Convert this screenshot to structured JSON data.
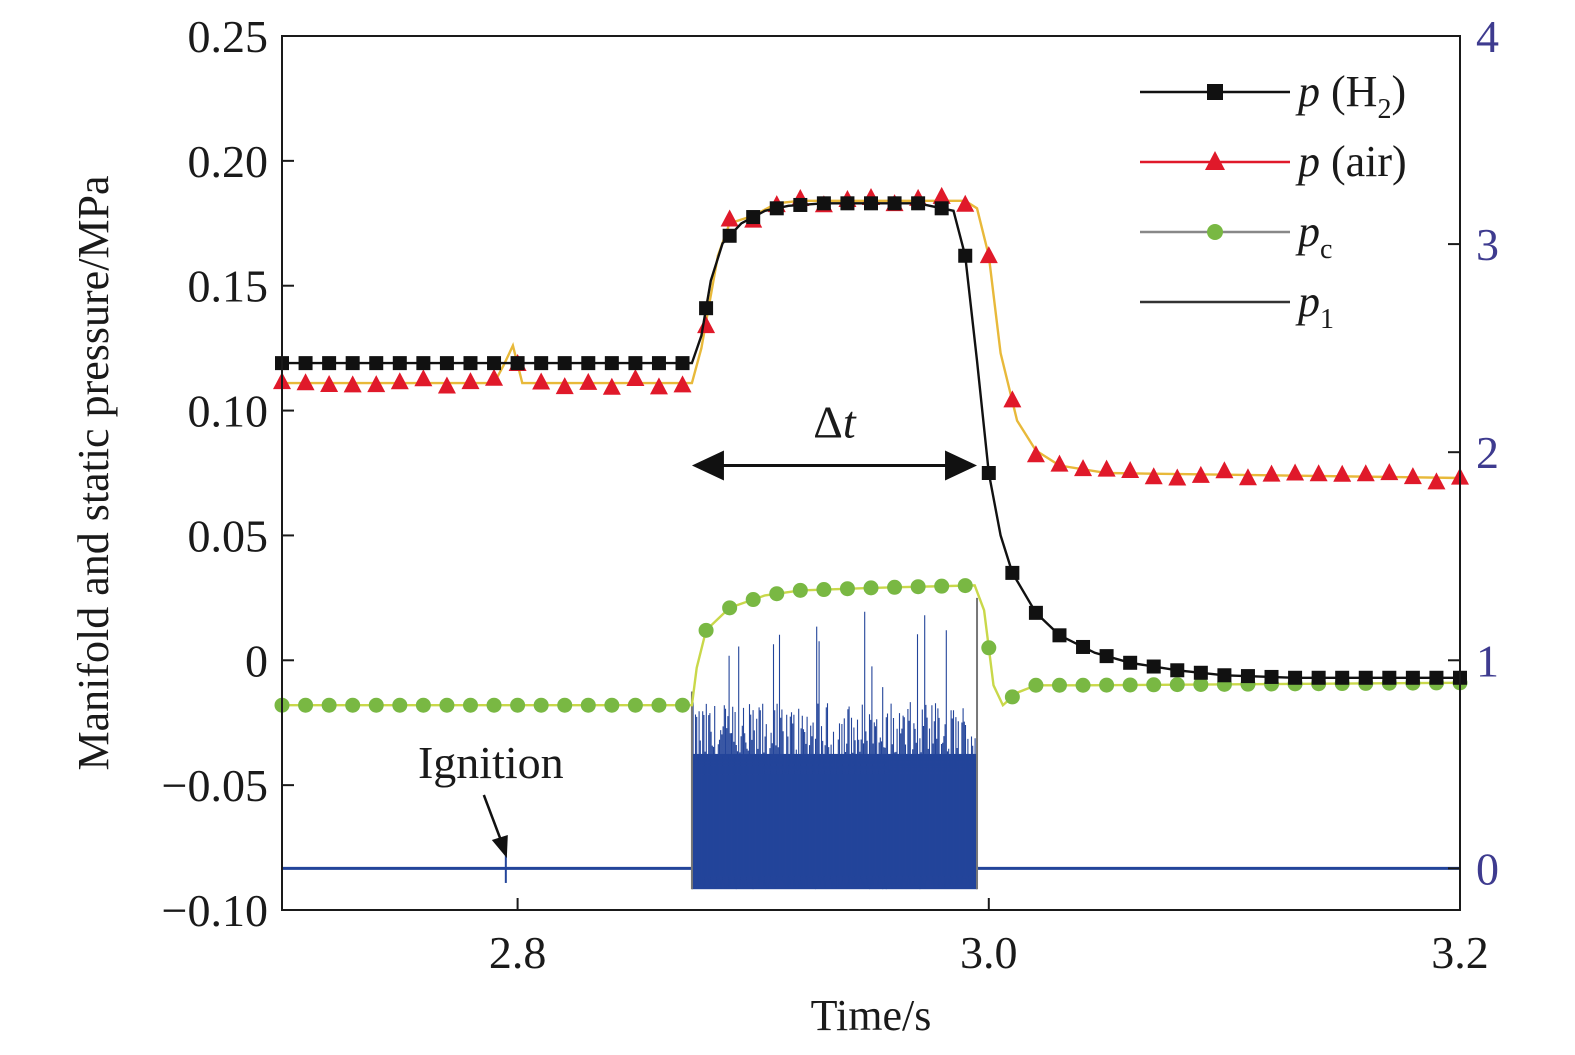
{
  "colors": {
    "h2": "#111111",
    "air": "#e0192a",
    "air_line": "#e8b93a",
    "pc_marker": "#79b843",
    "pc_line": "#c9d84a",
    "p1": "#23449a",
    "right_axis": "#3e3b8f"
  },
  "chart_data": {
    "type": "line",
    "title": "",
    "xlabel": "Time/s",
    "ylabel": "Manifold and static pressure/MPa",
    "y2label": "",
    "xlim": [
      2.7,
      3.2
    ],
    "ylim": [
      -0.1,
      0.25
    ],
    "y2lim": [
      -0.2,
      4
    ],
    "x_ticks": [
      "2.8",
      "3.0",
      "3.2"
    ],
    "y_ticks": [
      "−0.10",
      "−0.05",
      "0",
      "0.05",
      "0.10",
      "0.15",
      "0.20",
      "0.25"
    ],
    "y2_ticks": [
      "0",
      "1",
      "2",
      "3",
      "4"
    ],
    "grid": false,
    "legend_position": "top-right",
    "legend": {
      "h2": {
        "symbol": "p",
        "rest": " (H",
        "sub": "2",
        "close": ")"
      },
      "air": {
        "symbol": "p",
        "rest": " (air)"
      },
      "pc": {
        "symbol": "p",
        "sub": "c"
      },
      "p1": {
        "symbol": "p",
        "sub": "1"
      }
    },
    "annotations": {
      "delta_t": {
        "symbol": "Δ",
        "var": "t",
        "x_start": 2.874,
        "x_end": 2.995,
        "y": 0.078
      },
      "ignition": {
        "text": "Ignition",
        "x": 2.795
      }
    },
    "series": [
      {
        "key": "h2",
        "axis": "left",
        "marker": "square",
        "x": [
          2.7,
          2.874,
          2.878,
          2.882,
          2.887,
          2.895,
          2.905,
          2.915,
          2.93,
          2.97,
          2.985,
          2.99,
          2.995,
          3.0,
          3.005,
          3.01,
          3.02,
          3.03,
          3.045,
          3.06,
          3.08,
          3.1,
          3.13,
          3.2
        ],
        "y": [
          0.119,
          0.119,
          0.13,
          0.152,
          0.167,
          0.175,
          0.18,
          0.182,
          0.183,
          0.183,
          0.18,
          0.162,
          0.12,
          0.075,
          0.05,
          0.035,
          0.019,
          0.01,
          0.003,
          -0.001,
          -0.004,
          -0.006,
          -0.007,
          -0.007
        ]
      },
      {
        "key": "air",
        "axis": "left",
        "marker": "triangle",
        "x": [
          2.7,
          2.79,
          2.794,
          2.798,
          2.802,
          2.874,
          2.878,
          2.885,
          2.89,
          2.9,
          2.91,
          2.92,
          2.99,
          2.995,
          3.0,
          3.005,
          3.012,
          3.02,
          3.03,
          3.05,
          3.2
        ],
        "y": [
          0.111,
          0.111,
          0.118,
          0.126,
          0.111,
          0.111,
          0.125,
          0.162,
          0.175,
          0.178,
          0.183,
          0.184,
          0.184,
          0.181,
          0.162,
          0.123,
          0.096,
          0.084,
          0.078,
          0.075,
          0.073
        ]
      },
      {
        "key": "pc",
        "axis": "left",
        "marker": "circle",
        "x": [
          2.7,
          2.874,
          2.876,
          2.88,
          2.89,
          2.905,
          2.92,
          2.95,
          2.994,
          2.998,
          3.002,
          3.006,
          3.012,
          3.02,
          3.04,
          3.2
        ],
        "y": [
          -0.018,
          -0.018,
          -0.003,
          0.012,
          0.021,
          0.026,
          0.028,
          0.029,
          0.03,
          0.02,
          -0.01,
          -0.018,
          -0.013,
          -0.01,
          -0.01,
          -0.009
        ]
      },
      {
        "key": "p1",
        "axis": "right",
        "marker": "none",
        "baseline": 0.0,
        "burst_start": 2.874,
        "burst_end": 2.995,
        "burst_min": -0.1,
        "burst_dense_max": 0.6,
        "burst_peak": 1.25,
        "ignition_spike": {
          "x": 2.795,
          "min": -0.07,
          "max": 0.07
        }
      }
    ]
  }
}
